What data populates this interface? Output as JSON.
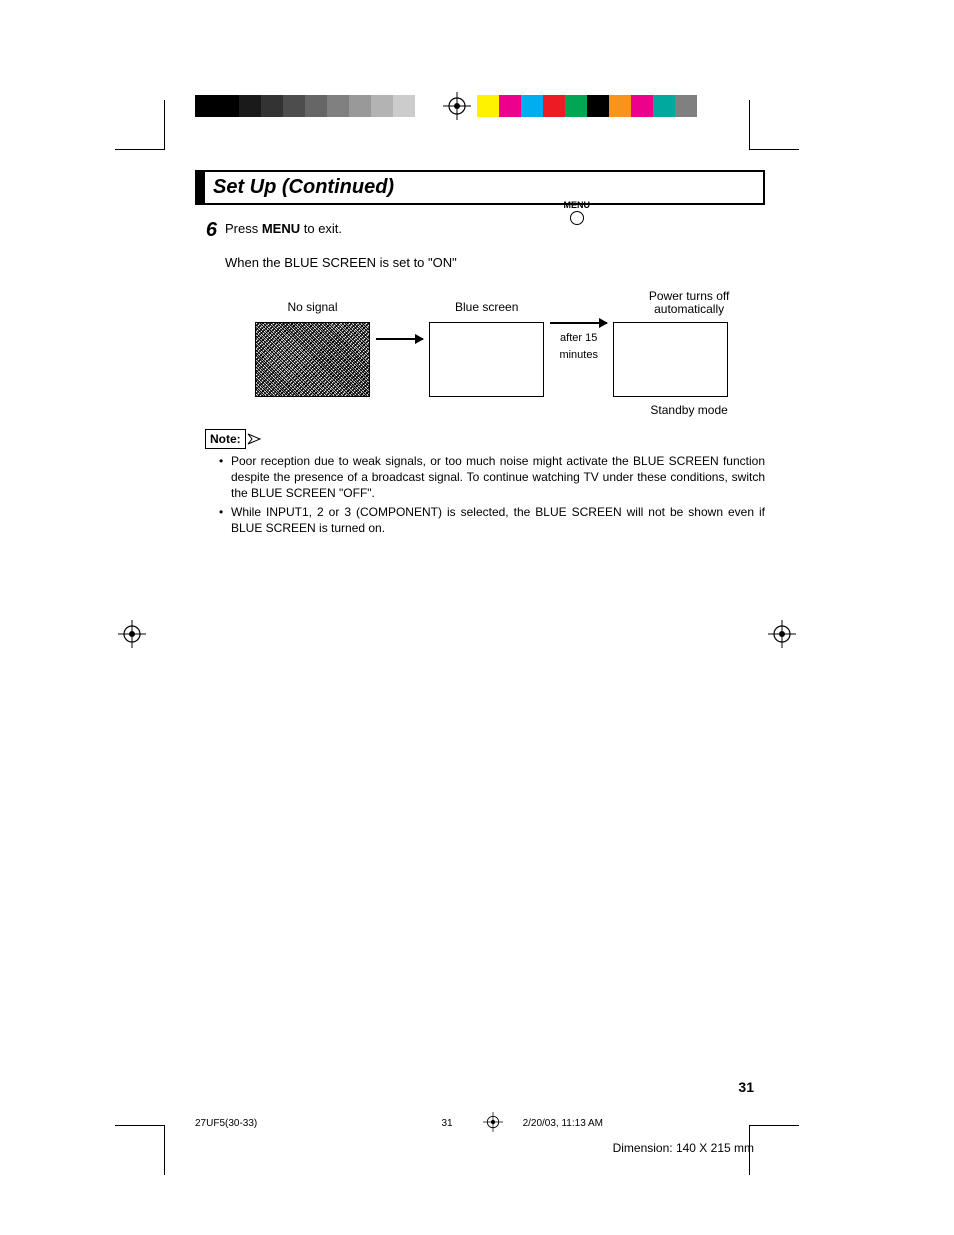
{
  "print_marks": {
    "gray_swatches": [
      "#000000",
      "#000000",
      "#1a1a1a",
      "#333333",
      "#4d4d4d",
      "#666666",
      "#808080",
      "#999999",
      "#b3b3b3",
      "#cccccc",
      "#ffffff"
    ],
    "color_swatches": [
      "#fff200",
      "#ec008c",
      "#00aeef",
      "#ed1c24",
      "#00a651",
      "#000000",
      "#f7941d",
      "#ec008c",
      "#00a99d",
      "#808080"
    ]
  },
  "title": "Set Up (Continued)",
  "step": {
    "num": "6",
    "line1_pre": "Press ",
    "line1_bold": "MENU",
    "line1_post": " to exit.",
    "line2": "When the BLUE SCREEN is set to \"ON\""
  },
  "menu_label": "MENU",
  "diagram": {
    "no_signal": "No signal",
    "blue_screen": "Blue screen",
    "power_off": "Power turns off automatically",
    "after": "after 15 minutes",
    "standby": "Standby mode"
  },
  "note_label": "Note:",
  "notes": [
    "Poor reception due to weak signals, or too much noise might activate the BLUE SCREEN function despite the presence of a broadcast signal. To continue watching TV under these conditions, switch the BLUE SCREEN \"OFF\".",
    "While INPUT1, 2 or 3 (COMPONENT) is selected, the BLUE SCREEN will not be shown even if BLUE SCREEN is turned on."
  ],
  "page_number": "31",
  "footer": {
    "doc": "27UF5(30-33)",
    "pg": "31",
    "ts": "2/20/03, 11:13 AM"
  },
  "dimension": "Dimension: 140  X 215 mm"
}
